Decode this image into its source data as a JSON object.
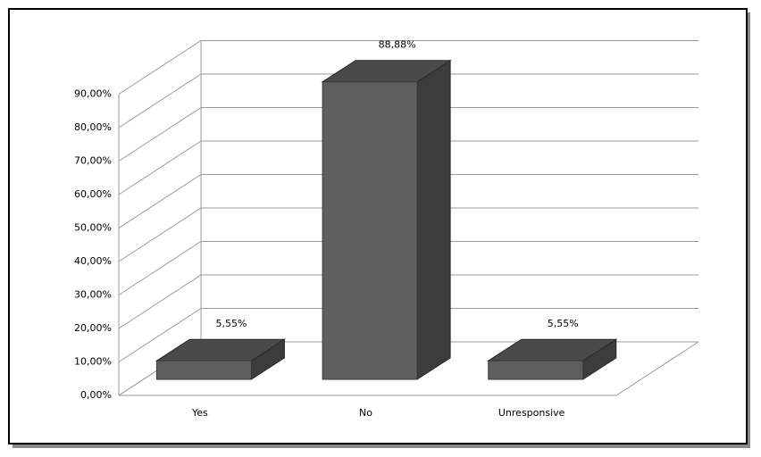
{
  "chart_data": {
    "type": "bar3d",
    "categories": [
      "Yes",
      "No",
      "Unresponsive"
    ],
    "values": [
      5.55,
      88.88,
      5.55
    ],
    "value_labels": [
      "5,55%",
      "88,88%",
      "5,55%"
    ],
    "color": "#5e5e5e",
    "ylim": [
      0,
      90
    ],
    "yticks": [
      {
        "value": 0,
        "label": "0,00%"
      },
      {
        "value": 10,
        "label": "10,00%"
      },
      {
        "value": 20,
        "label": "20,00%"
      },
      {
        "value": 30,
        "label": "30,00%"
      },
      {
        "value": 40,
        "label": "40,00%"
      },
      {
        "value": 50,
        "label": "50,00%"
      },
      {
        "value": 60,
        "label": "60,00%"
      },
      {
        "value": 70,
        "label": "70,00%"
      },
      {
        "value": 80,
        "label": "80,00%"
      },
      {
        "value": 90,
        "label": "90,00%"
      }
    ],
    "grid": true
  }
}
